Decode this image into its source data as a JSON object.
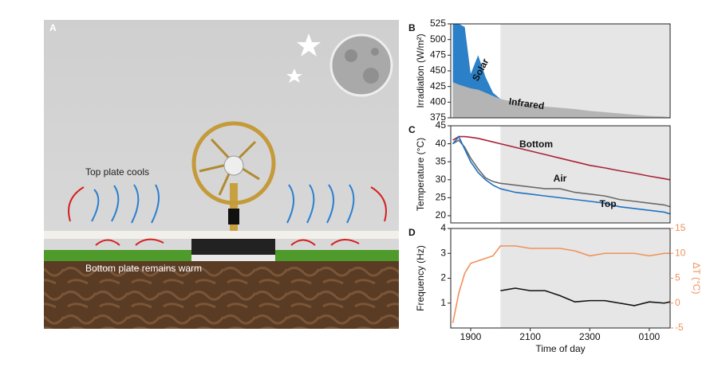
{
  "panel_a": {
    "label": "A",
    "top_text": "Top plate cools",
    "bottom_text": "Bottom plate remains warm"
  },
  "chart_data": [
    {
      "type": "area",
      "label": "B",
      "ylabel": "Irradiation (W/m²)",
      "x": [
        18.4,
        18.6,
        18.8,
        19,
        19.25,
        19.5,
        19.75,
        20,
        20.5,
        21,
        21.5,
        22,
        22.5,
        23,
        23.5,
        24,
        24.5,
        25,
        25.5,
        25.7
      ],
      "xlim": [
        18.33,
        25.7
      ],
      "ylim": [
        375,
        525
      ],
      "yticks": [
        375,
        400,
        425,
        450,
        475,
        500,
        525
      ],
      "shade_from": 20,
      "series": [
        {
          "name": "Solar",
          "color": "#2b80c8",
          "values": [
            525,
            525,
            520,
            445,
            475,
            440,
            415,
            405,
            null,
            null,
            null,
            null,
            null,
            null,
            null,
            null,
            null,
            null,
            null,
            null
          ]
        },
        {
          "name": "Infrared",
          "color": "#b4b4b4",
          "values": [
            432,
            428,
            425,
            422,
            420,
            415,
            410,
            405,
            400,
            396,
            393,
            391,
            389,
            386,
            384,
            382,
            380,
            378,
            377,
            376
          ]
        }
      ]
    },
    {
      "type": "line",
      "label": "C",
      "ylabel": "Temperature (°C)",
      "x": [
        18.4,
        18.6,
        18.8,
        19,
        19.25,
        19.5,
        19.75,
        20,
        20.5,
        21,
        21.5,
        22,
        22.5,
        23,
        23.5,
        24,
        24.5,
        25,
        25.5,
        25.7
      ],
      "xlim": [
        18.33,
        25.7
      ],
      "ylim": [
        18,
        45
      ],
      "yticks": [
        20,
        25,
        30,
        35,
        40,
        45
      ],
      "shade_from": 20,
      "series": [
        {
          "name": "Bottom",
          "color": "#a8243a",
          "values": [
            41,
            42,
            42,
            41.8,
            41.5,
            41,
            40.5,
            40,
            39,
            38,
            37,
            36,
            35,
            34,
            33.3,
            32.5,
            31.8,
            31,
            30.3,
            30
          ]
        },
        {
          "name": "Air",
          "color": "#6a6a6a",
          "values": [
            40,
            41,
            39,
            36,
            33,
            30.5,
            29.5,
            29,
            28.5,
            28,
            27.5,
            27.5,
            26.5,
            26,
            25.5,
            24.5,
            24,
            23.5,
            23,
            22.5
          ]
        },
        {
          "name": "Top",
          "color": "#1f72c4",
          "values": [
            40,
            42,
            38.5,
            35,
            32,
            30,
            28.5,
            27.5,
            26.5,
            26,
            25.5,
            25,
            24.5,
            24,
            23.5,
            22.5,
            22,
            21.5,
            21,
            20.5
          ]
        }
      ]
    },
    {
      "type": "line",
      "label": "D",
      "ylabel": "Frequency (Hz)",
      "y2label": "ΔT (°C)",
      "xlabel": "Time of day",
      "x": [
        18.4,
        18.6,
        18.8,
        19,
        19.25,
        19.5,
        19.75,
        20,
        20.5,
        21,
        21.5,
        22,
        22.5,
        23,
        23.5,
        24,
        24.5,
        25,
        25.5,
        25.7
      ],
      "xlim": [
        18.33,
        25.7
      ],
      "xticks": [
        {
          "value": 19,
          "label": "1900"
        },
        {
          "value": 21,
          "label": "2100"
        },
        {
          "value": 23,
          "label": "2300"
        },
        {
          "value": 25,
          "label": "0100"
        }
      ],
      "ylim": [
        0,
        4
      ],
      "yticks": [
        1,
        2,
        3,
        4
      ],
      "y2lim": [
        -5,
        15
      ],
      "y2ticks": [
        -5,
        0,
        5,
        10,
        15
      ],
      "shade_from": 20,
      "series": [
        {
          "color": "#111111",
          "values": [
            null,
            null,
            null,
            null,
            null,
            null,
            null,
            1.5,
            1.6,
            1.5,
            1.5,
            1.3,
            1.05,
            1.1,
            1.1,
            1.0,
            0.9,
            1.05,
            1.0,
            1.05
          ]
        },
        {
          "color": "#f0915a",
          "axis": "y2",
          "values": [
            -4,
            2,
            6,
            8,
            8.5,
            9,
            9.5,
            11.5,
            11.5,
            11,
            11,
            11,
            10.5,
            9.5,
            10,
            10,
            10,
            9.5,
            10,
            10
          ]
        }
      ]
    }
  ]
}
